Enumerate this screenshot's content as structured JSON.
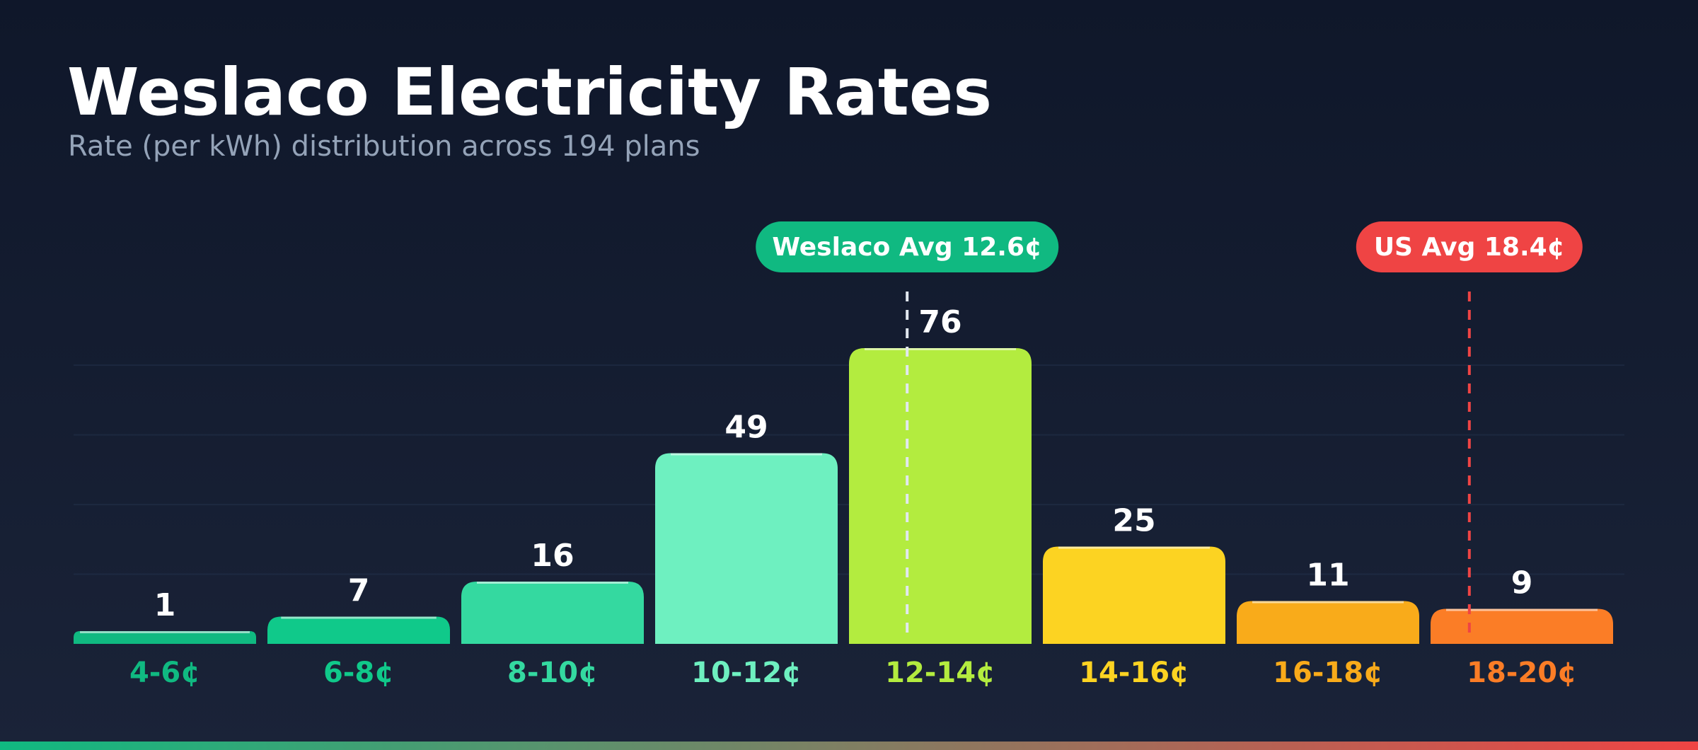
{
  "chart_data": {
    "type": "bar",
    "title": "Weslaco Electricity Rates",
    "subtitle": "Rate (per kWh) distribution across 194 plans",
    "xlabel": "",
    "ylabel": "",
    "categories": [
      "4-6¢",
      "6-8¢",
      "8-10¢",
      "10-12¢",
      "12-14¢",
      "14-16¢",
      "16-18¢",
      "18-20¢"
    ],
    "values": [
      1,
      7,
      16,
      49,
      76,
      25,
      11,
      9
    ],
    "bar_colors": [
      "#10b981",
      "#10c98a",
      "#34d9a0",
      "#6ef0c0",
      "#b3ec3f",
      "#fcd322",
      "#f9ab1a",
      "#fb7d26"
    ],
    "label_colors": [
      "#10b981",
      "#10c98a",
      "#34d9a0",
      "#6ef0c0",
      "#b3ec3f",
      "#fcd322",
      "#f9ab1a",
      "#fb7d26"
    ],
    "grid": true,
    "annotations": [
      {
        "label": "Weslaco Avg 12.6¢",
        "x_value": 12.6,
        "color": "#10b981",
        "line_color": "#e2e8f0"
      },
      {
        "label": "US Avg 18.4¢",
        "x_value": 18.4,
        "color": "#ef4444",
        "line_color": "#ef4444"
      }
    ],
    "bins": {
      "start": 4,
      "width": 2
    },
    "bottom_bar_gradient": [
      "#10b981",
      "#ef4444"
    ]
  }
}
